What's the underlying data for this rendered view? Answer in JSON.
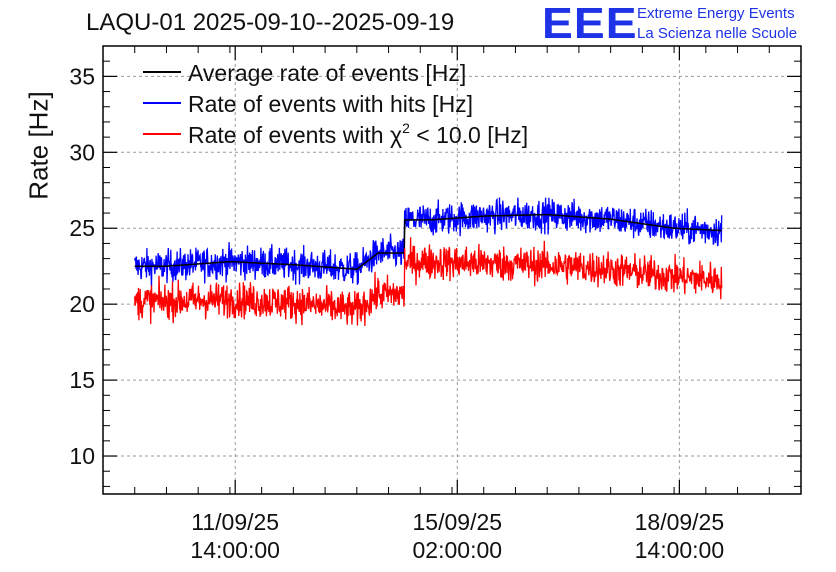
{
  "header": {
    "title": "LAQU-01 2025-09-10--2025-09-19"
  },
  "logo": {
    "mark": "EEE",
    "line1": "Extreme Energy Events",
    "line2": "La Scienza nelle Scuole",
    "color": "#1e32e6"
  },
  "chart_data": {
    "type": "line",
    "title": "LAQU-01 2025-09-10--2025-09-19",
    "xlabel": "",
    "ylabel": "Rate [Hz]",
    "ylim": [
      7.5,
      37
    ],
    "yticks": [
      10,
      15,
      20,
      25,
      30,
      35
    ],
    "xlim": [
      "2025-09-09T12:00:00",
      "2025-09-20T12:00:00"
    ],
    "xticks": [
      {
        "x": "2025-09-11T14:00:00",
        "label_date": "11/09/25",
        "label_time": "14:00:00"
      },
      {
        "x": "2025-09-15T02:00:00",
        "label_date": "15/09/25",
        "label_time": "02:00:00"
      },
      {
        "x": "2025-09-18T14:00:00",
        "label_date": "18/09/25",
        "label_time": "14:00:00"
      }
    ],
    "grid": true,
    "legend_position": "top-left",
    "series": [
      {
        "name": "Average rate of events [Hz]",
        "color": "#000000",
        "x": [
          "2025-09-10T12:00:00",
          "2025-09-11T12:00:00",
          "2025-09-12T12:00:00",
          "2025-09-13T12:00:00",
          "2025-09-14T12:00:00",
          "2025-09-15T12:00:00",
          "2025-09-16T12:00:00",
          "2025-09-17T12:00:00",
          "2025-09-18T12:00:00",
          "2025-09-19T12:00:00"
        ],
        "values": [
          22.5,
          22.8,
          22.6,
          22.3,
          25.5,
          25.8,
          25.9,
          25.6,
          25.0,
          24.8
        ]
      },
      {
        "name": "Rate of events with hits [Hz]",
        "color": "#0000ff",
        "x": [
          "2025-09-10T12:00:00",
          "2025-09-11T12:00:00",
          "2025-09-12T12:00:00",
          "2025-09-13T12:00:00",
          "2025-09-14T12:00:00",
          "2025-09-15T12:00:00",
          "2025-09-16T12:00:00",
          "2025-09-17T12:00:00",
          "2025-09-18T12:00:00",
          "2025-09-19T12:00:00"
        ],
        "values": [
          22.5,
          22.8,
          22.6,
          22.3,
          25.5,
          25.8,
          25.9,
          25.6,
          25.0,
          24.8
        ],
        "noise": 1.0
      },
      {
        "name": "Rate of events with χ² < 10.0 [Hz]",
        "label_parts": [
          "Rate of events with ",
          "χ",
          "2",
          " < 10.0 [Hz]"
        ],
        "color": "#ff0000",
        "x": [
          "2025-09-10T12:00:00",
          "2025-09-11T12:00:00",
          "2025-09-12T12:00:00",
          "2025-09-13T12:00:00",
          "2025-09-14T12:00:00",
          "2025-09-15T12:00:00",
          "2025-09-16T12:00:00",
          "2025-09-17T12:00:00",
          "2025-09-18T12:00:00",
          "2025-09-19T12:00:00"
        ],
        "values": [
          20.2,
          20.3,
          20.1,
          19.6,
          22.8,
          22.7,
          22.6,
          22.3,
          21.8,
          21.5
        ],
        "noise": 1.1
      }
    ],
    "x_range_data": [
      "2025-09-10T00:00:00",
      "2025-09-19T06:00:00"
    ],
    "step_at": "2025-09-14T06:00:00"
  }
}
